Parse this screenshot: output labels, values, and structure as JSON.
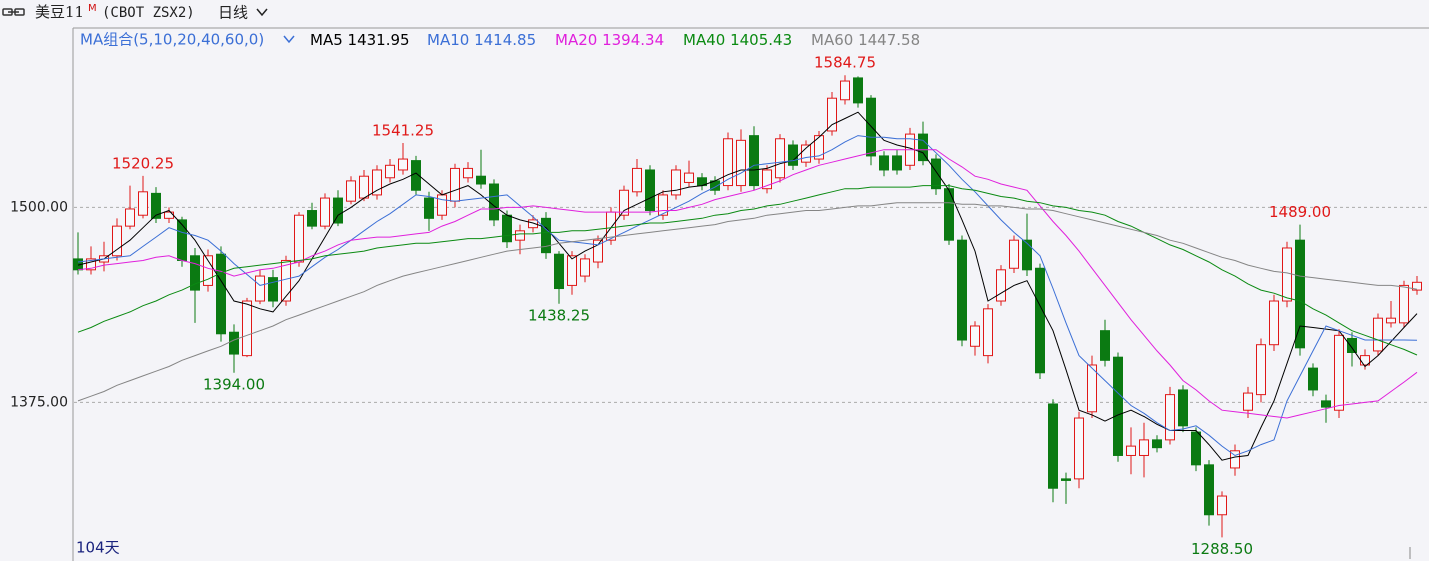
{
  "chart_data": {
    "type": "candlestick",
    "title": "美豆11",
    "title_sup": "M",
    "subtitle": "(CBOT ZSX2)",
    "period": "日线",
    "ma_group": "MA组合(5,10,20,40,60,0)",
    "day_count": "104天",
    "up_color": "#e01818",
    "down_color": "#0b7a12",
    "ylim": [
      1274,
      1615
    ],
    "yticks": [
      {
        "value": 1375,
        "label": "1375.00"
      },
      {
        "value": 1500,
        "label": "1500.00"
      }
    ],
    "grid": true,
    "open": [
      1467,
      1460,
      1465,
      1469,
      1488,
      1495,
      1509,
      1493,
      1492,
      1469,
      1450,
      1470,
      1420,
      1405,
      1440,
      1455,
      1440,
      1465,
      1498,
      1488,
      1506,
      1504,
      1506,
      1508,
      1519,
      1524,
      1530,
      1506,
      1495,
      1504,
      1519,
      1520,
      1515,
      1495,
      1479,
      1487,
      1493,
      1470,
      1450,
      1456,
      1465,
      1479,
      1495,
      1510,
      1524,
      1495,
      1508,
      1516,
      1519,
      1517,
      1514,
      1514,
      1546,
      1512,
      1519,
      1540,
      1529,
      1531,
      1549,
      1569,
      1583,
      1570,
      1533,
      1533,
      1527,
      1547,
      1531,
      1512,
      1479,
      1411,
      1405,
      1440,
      1461,
      1479,
      1461,
      1374,
      1326,
      1326,
      1369,
      1421,
      1404,
      1341,
      1341,
      1351,
      1351,
      1383,
      1356,
      1335,
      1303,
      1333,
      1370,
      1380,
      1412,
      1440,
      1479,
      1397,
      1376,
      1370,
      1416,
      1399,
      1408,
      1426,
      1426,
      1447
    ],
    "high": [
      1484,
      1475,
      1478,
      1493,
      1514,
      1520.25,
      1513,
      1500,
      1494,
      1474,
      1473,
      1475,
      1425,
      1442,
      1460,
      1460,
      1469,
      1497,
      1503,
      1509,
      1511,
      1520,
      1524,
      1527,
      1531,
      1541.25,
      1533,
      1510,
      1511,
      1528,
      1529,
      1537,
      1518,
      1498,
      1489,
      1495,
      1497,
      1472,
      1472,
      1470,
      1482,
      1500,
      1514,
      1531,
      1527,
      1511,
      1527,
      1530,
      1522,
      1520,
      1548,
      1550,
      1552,
      1527,
      1547,
      1543,
      1543,
      1549,
      1574,
      1584.75,
      1584,
      1572,
      1536,
      1537,
      1551,
      1555,
      1534,
      1515,
      1482,
      1427,
      1438,
      1463,
      1482,
      1496,
      1464,
      1377,
      1330,
      1369,
      1405,
      1428,
      1407,
      1359,
      1362,
      1354,
      1385,
      1386,
      1359,
      1338,
      1318,
      1348,
      1385,
      1416,
      1444,
      1478,
      1489,
      1400,
      1380,
      1422,
      1420,
      1409,
      1432,
      1440,
      1453,
      1456
    ],
    "low": [
      1457,
      1457,
      1459,
      1466,
      1486,
      1493,
      1490,
      1490,
      1462,
      1426,
      1446,
      1414,
      1394,
      1404,
      1438,
      1436,
      1437,
      1462,
      1486,
      1486,
      1488,
      1502,
      1504,
      1505,
      1516,
      1521,
      1508,
      1485,
      1492,
      1500,
      1516,
      1512,
      1488,
      1474,
      1470,
      1484,
      1467,
      1438.25,
      1444,
      1452,
      1461,
      1476,
      1492,
      1507,
      1495,
      1492,
      1505,
      1513,
      1511,
      1508,
      1511,
      1510,
      1511,
      1509,
      1516,
      1524,
      1526,
      1528,
      1546,
      1566,
      1564,
      1527,
      1520,
      1521,
      1524,
      1527,
      1508,
      1476,
      1411,
      1405,
      1400,
      1437,
      1458,
      1456,
      1390,
      1311,
      1310,
      1320,
      1365,
      1398,
      1337,
      1329,
      1327,
      1343,
      1348,
      1356,
      1331,
      1296,
      1288.5,
      1328,
      1365,
      1375,
      1408,
      1436,
      1405,
      1379,
      1362,
      1365,
      1398,
      1396,
      1405,
      1423,
      1423,
      1444
    ],
    "close": [
      1460,
      1467,
      1469,
      1488,
      1499,
      1510,
      1493,
      1497,
      1466,
      1447,
      1469,
      1419,
      1406,
      1440,
      1456,
      1440,
      1466,
      1495,
      1488,
      1506,
      1490,
      1517,
      1520,
      1524,
      1527,
      1531,
      1511,
      1493,
      1508,
      1525,
      1525,
      1515,
      1492,
      1478,
      1485,
      1492,
      1471,
      1448,
      1469,
      1467,
      1479,
      1497,
      1511,
      1525,
      1498,
      1508,
      1524,
      1522,
      1514,
      1511,
      1544,
      1543,
      1514,
      1524,
      1544,
      1527,
      1540,
      1546,
      1570,
      1581,
      1567,
      1533,
      1524,
      1524,
      1547,
      1530,
      1512,
      1479,
      1415,
      1424,
      1435,
      1460,
      1479,
      1460,
      1394,
      1320,
      1325,
      1365,
      1399,
      1402,
      1341,
      1347,
      1351,
      1346,
      1380,
      1360,
      1335,
      1303,
      1315,
      1344,
      1381,
      1412,
      1440,
      1474,
      1410,
      1383,
      1372,
      1418,
      1407,
      1405,
      1429,
      1429,
      1450,
      1452
    ],
    "high_labels": [
      null,
      null,
      null,
      null,
      null,
      "1520.25",
      null,
      null,
      null,
      null,
      null,
      null,
      null,
      null,
      null,
      null,
      null,
      null,
      null,
      null,
      null,
      null,
      null,
      null,
      null,
      "1541.25",
      null,
      null,
      null,
      null,
      null,
      null,
      null,
      null,
      null,
      null,
      null,
      null,
      null,
      null,
      null,
      null,
      null,
      null,
      null,
      null,
      null,
      null,
      null,
      null,
      null,
      null,
      null,
      null,
      null,
      null,
      null,
      null,
      null,
      "1584.75",
      null,
      null,
      null,
      null,
      null,
      null,
      null,
      null,
      null,
      null,
      null,
      null,
      null,
      null,
      null,
      null,
      null,
      null,
      null,
      null,
      null,
      null,
      null,
      null,
      null,
      null,
      null,
      null,
      null,
      null,
      null,
      null,
      null,
      null,
      "1489.00",
      null,
      null,
      null,
      null,
      null,
      null,
      null,
      null,
      null
    ],
    "low_labels": [
      null,
      null,
      null,
      null,
      null,
      null,
      null,
      null,
      null,
      null,
      null,
      null,
      "1394.00",
      null,
      null,
      null,
      null,
      null,
      null,
      null,
      null,
      null,
      null,
      null,
      null,
      null,
      null,
      null,
      null,
      null,
      null,
      null,
      null,
      null,
      null,
      null,
      null,
      "1438.25",
      null,
      null,
      null,
      null,
      null,
      null,
      null,
      null,
      null,
      null,
      null,
      null,
      null,
      null,
      null,
      null,
      null,
      null,
      null,
      null,
      null,
      null,
      null,
      null,
      null,
      null,
      null,
      null,
      null,
      null,
      null,
      null,
      null,
      null,
      null,
      null,
      null,
      null,
      null,
      null,
      null,
      null,
      null,
      null,
      null,
      null,
      null,
      null,
      null,
      null,
      "1288.50",
      null,
      null,
      null,
      null,
      null,
      null,
      null,
      null,
      null,
      null,
      null,
      null,
      null,
      null,
      null
    ],
    "series": [
      {
        "name": "MA5",
        "color": "#000000",
        "last_label": "1431.95",
        "values": [
          1463,
          1465,
          1467,
          1473,
          1479,
          1487,
          1495,
          1498,
          1489,
          1479,
          1466,
          1453,
          1440,
          1438,
          1435,
          1433,
          1443,
          1453,
          1467,
          1481,
          1495,
          1500,
          1506,
          1511,
          1515,
          1518,
          1522,
          1515,
          1508,
          1511,
          1514,
          1508,
          1501,
          1495,
          1492,
          1490,
          1487,
          1477,
          1467,
          1472,
          1476,
          1487,
          1498,
          1502,
          1506,
          1510,
          1511,
          1513,
          1514,
          1517,
          1521,
          1524,
          1524,
          1525,
          1528,
          1530,
          1538,
          1545,
          1553,
          1557,
          1561,
          1552,
          1543,
          1540,
          1538,
          1535,
          1523,
          1511,
          1492,
          1472,
          1440,
          1445,
          1450,
          1453,
          1437,
          1421,
          1396,
          1370,
          1367,
          1363,
          1367,
          1370,
          1366,
          1361,
          1357,
          1357,
          1357,
          1348,
          1338,
          1340,
          1341,
          1359,
          1376,
          1400,
          1424,
          1423,
          1422,
          1421,
          1410,
          1398,
          1405,
          1414,
          1423,
          1431.95
        ]
      },
      {
        "name": "MA10",
        "color": "#3b6fd6",
        "last_label": "1414.85",
        "values": [
          1465,
          1466,
          1467,
          1468,
          1469,
          1475,
          1481,
          1487,
          1484,
          1482,
          1479,
          1472,
          1464,
          1457,
          1450,
          1452,
          1454,
          1456,
          1462,
          1468,
          1473,
          1479,
          1485,
          1491,
          1496,
          1502,
          1508,
          1507,
          1505,
          1504,
          1505,
          1506,
          1507,
          1508,
          1501,
          1494,
          1486,
          1479,
          1478,
          1477,
          1476,
          1480,
          1484,
          1488,
          1492,
          1496,
          1500,
          1504,
          1509,
          1513,
          1518,
          1522,
          1527,
          1528,
          1529,
          1530,
          1532,
          1533,
          1537,
          1542,
          1546,
          1545,
          1545,
          1544,
          1544,
          1543,
          1535,
          1527,
          1518,
          1510,
          1501,
          1492,
          1484,
          1477,
          1469,
          1448,
          1426,
          1405,
          1397,
          1389,
          1381,
          1373,
          1368,
          1362,
          1357,
          1358,
          1360,
          1354,
          1347,
          1341,
          1344,
          1348,
          1351,
          1376,
          1392,
          1408,
          1424,
          1421,
          1418,
          1415,
          1415,
          1415,
          1415,
          1414.85
        ]
      },
      {
        "name": "MA20",
        "color": "#e020dc",
        "last_label": "1394.34",
        "values": [
          1460,
          1461,
          1463,
          1464,
          1465,
          1466,
          1468,
          1469,
          1466,
          1464,
          1461,
          1459,
          1456,
          1458,
          1460,
          1461,
          1463,
          1465,
          1469,
          1472,
          1476,
          1479,
          1480,
          1481,
          1481,
          1482,
          1483,
          1484,
          1488,
          1491,
          1495,
          1499,
          1499,
          1500,
          1500,
          1501,
          1500,
          1499,
          1498,
          1497,
          1497,
          1497,
          1497,
          1497,
          1497,
          1498,
          1498,
          1500,
          1502,
          1505,
          1507,
          1509,
          1511,
          1514,
          1517,
          1521,
          1524,
          1527,
          1529,
          1531,
          1533,
          1535,
          1537,
          1537,
          1537,
          1537,
          1537,
          1531,
          1526,
          1520,
          1518,
          1515,
          1513,
          1511,
          1501,
          1491,
          1482,
          1472,
          1461,
          1450,
          1439,
          1428,
          1418,
          1408,
          1399,
          1389,
          1383,
          1376,
          1370,
          1369,
          1368,
          1367,
          1366,
          1365,
          1367,
          1369,
          1371,
          1373,
          1374,
          1375,
          1376,
          1382,
          1388,
          1394.34
        ]
      },
      {
        "name": "MA40",
        "color": "#0b8a12",
        "last_label": "1405.43",
        "values": [
          1420,
          1423,
          1427,
          1430,
          1433,
          1437,
          1440,
          1444,
          1447,
          1451,
          1454,
          1458,
          1461,
          1462,
          1463,
          1464,
          1465,
          1466,
          1467,
          1469,
          1470,
          1471,
          1472,
          1474,
          1475,
          1476,
          1477,
          1477,
          1478,
          1479,
          1480,
          1480,
          1481,
          1482,
          1483,
          1483,
          1484,
          1484,
          1485,
          1485,
          1486,
          1487,
          1488,
          1489,
          1490,
          1490,
          1491,
          1492,
          1493,
          1495,
          1496,
          1498,
          1499,
          1501,
          1502,
          1504,
          1506,
          1508,
          1510,
          1512,
          1512,
          1513,
          1513,
          1513,
          1513,
          1514,
          1514,
          1514,
          1512,
          1511,
          1509,
          1507,
          1506,
          1504,
          1503,
          1501,
          1500,
          1498,
          1497,
          1495,
          1491,
          1488,
          1484,
          1480,
          1476,
          1473,
          1469,
          1465,
          1460,
          1456,
          1451,
          1447,
          1445,
          1442,
          1440,
          1435,
          1431,
          1426,
          1421,
          1418,
          1415,
          1412,
          1409,
          1405.43
        ]
      },
      {
        "name": "MA60",
        "color": "#858585",
        "last_label": "1447.58",
        "values": [
          1376,
          1379,
          1382,
          1386,
          1389,
          1392,
          1395,
          1398,
          1402,
          1405,
          1408,
          1411,
          1415,
          1418,
          1421,
          1424,
          1428,
          1431,
          1434,
          1437,
          1440,
          1443,
          1446,
          1450,
          1453,
          1456,
          1458,
          1460,
          1462,
          1464,
          1466,
          1468,
          1470,
          1472,
          1473,
          1474,
          1475,
          1477,
          1478,
          1479,
          1480,
          1481,
          1482,
          1483,
          1484,
          1485,
          1486,
          1487,
          1488,
          1489,
          1491,
          1492,
          1493,
          1495,
          1496,
          1497,
          1498,
          1498,
          1499,
          1500,
          1501,
          1501,
          1502,
          1503,
          1503,
          1503,
          1503,
          1503,
          1502,
          1502,
          1501,
          1501,
          1500,
          1499,
          1499,
          1498,
          1496,
          1494,
          1492,
          1490,
          1488,
          1486,
          1484,
          1482,
          1479,
          1477,
          1474,
          1471,
          1468,
          1466,
          1463,
          1461,
          1459,
          1458,
          1456,
          1455,
          1454,
          1453,
          1452,
          1451,
          1450,
          1450,
          1449,
          1447.58
        ]
      }
    ]
  }
}
